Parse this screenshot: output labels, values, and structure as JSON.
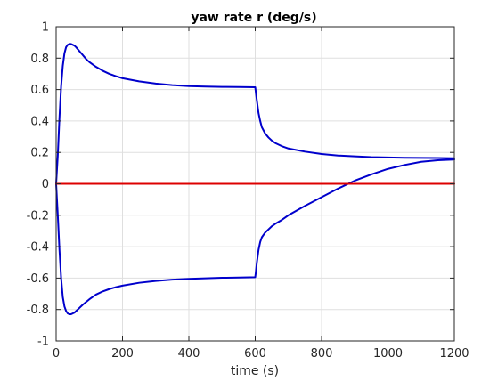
{
  "chart_data": {
    "type": "line",
    "title": "yaw rate r (deg/s)",
    "xlabel": "time (s)",
    "ylabel": "",
    "xlim": [
      0,
      1200
    ],
    "ylim": [
      -1,
      1
    ],
    "grid": true,
    "x_ticks": [
      0,
      200,
      400,
      600,
      800,
      1000,
      1200
    ],
    "x_tick_labels": [
      "0",
      "200",
      "400",
      "600",
      "800",
      "1000",
      "1200"
    ],
    "y_ticks": [
      -1,
      -0.8,
      -0.6,
      -0.4,
      -0.2,
      0,
      0.2,
      0.4,
      0.6,
      0.8,
      1
    ],
    "y_tick_labels": [
      "-1",
      "-0.8",
      "-0.6",
      "-0.4",
      "-0.2",
      "0",
      "0.2",
      "0.4",
      "0.6",
      "0.8",
      "1"
    ],
    "series": [
      {
        "color": "#0000cc",
        "x": [
          0,
          5,
          10,
          15,
          20,
          25,
          30,
          35,
          40,
          45,
          50,
          55,
          60,
          70,
          80,
          90,
          100,
          120,
          140,
          160,
          180,
          200,
          250,
          300,
          350,
          400,
          450,
          500,
          550,
          600,
          602,
          605,
          610,
          615,
          620,
          630,
          640,
          650,
          660,
          680,
          700,
          750,
          800,
          850,
          900,
          950,
          1000,
          1050,
          1100,
          1150,
          1200
        ],
        "y": [
          0.0,
          0.18,
          0.42,
          0.62,
          0.75,
          0.83,
          0.87,
          0.885,
          0.89,
          0.89,
          0.885,
          0.88,
          0.87,
          0.845,
          0.82,
          0.795,
          0.775,
          0.745,
          0.72,
          0.7,
          0.685,
          0.672,
          0.652,
          0.638,
          0.628,
          0.622,
          0.619,
          0.617,
          0.616,
          0.615,
          0.58,
          0.53,
          0.45,
          0.4,
          0.36,
          0.32,
          0.295,
          0.275,
          0.26,
          0.24,
          0.225,
          0.205,
          0.19,
          0.18,
          0.175,
          0.17,
          0.168,
          0.166,
          0.165,
          0.164,
          0.163
        ]
      },
      {
        "color": "#0000cc",
        "x": [
          0,
          5,
          10,
          15,
          20,
          25,
          30,
          35,
          40,
          45,
          50,
          55,
          60,
          70,
          80,
          100,
          120,
          140,
          160,
          180,
          200,
          250,
          300,
          350,
          400,
          450,
          500,
          550,
          600,
          602,
          605,
          610,
          615,
          620,
          630,
          640,
          650,
          660,
          680,
          700,
          750,
          800,
          850,
          900,
          950,
          1000,
          1050,
          1100,
          1150,
          1200
        ],
        "y": [
          0.0,
          -0.2,
          -0.42,
          -0.6,
          -0.72,
          -0.78,
          -0.81,
          -0.825,
          -0.83,
          -0.83,
          -0.825,
          -0.82,
          -0.81,
          -0.79,
          -0.77,
          -0.735,
          -0.705,
          -0.685,
          -0.67,
          -0.658,
          -0.648,
          -0.63,
          -0.618,
          -0.61,
          -0.605,
          -0.601,
          -0.598,
          -0.596,
          -0.594,
          -0.56,
          -0.5,
          -0.42,
          -0.37,
          -0.34,
          -0.31,
          -0.29,
          -0.27,
          -0.255,
          -0.23,
          -0.2,
          -0.14,
          -0.085,
          -0.03,
          0.02,
          0.06,
          0.095,
          0.12,
          0.14,
          0.15,
          0.155
        ]
      },
      {
        "color": "#dd0000",
        "x": [
          0,
          1200
        ],
        "y": [
          0,
          0
        ]
      }
    ]
  }
}
